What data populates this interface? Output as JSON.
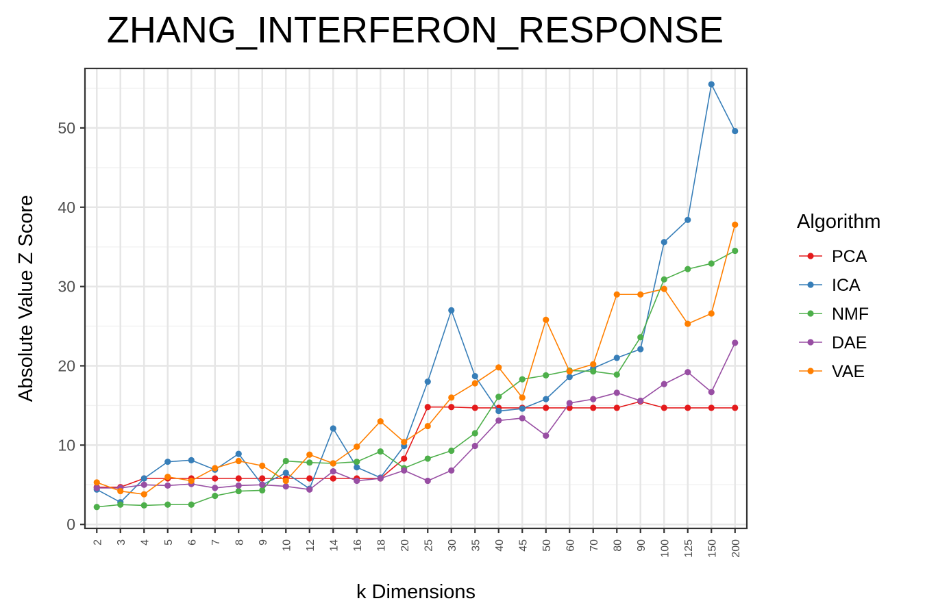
{
  "chart_data": {
    "type": "line",
    "title": "ZHANG_INTERFERON_RESPONSE",
    "xlabel": "k Dimensions",
    "ylabel": "Absolute Value Z Score",
    "categories": [
      "2",
      "3",
      "4",
      "5",
      "6",
      "7",
      "8",
      "9",
      "10",
      "12",
      "14",
      "16",
      "18",
      "20",
      "25",
      "30",
      "35",
      "40",
      "45",
      "50",
      "60",
      "70",
      "80",
      "90",
      "100",
      "125",
      "150",
      "200"
    ],
    "ylim": [
      -0.5,
      57.5
    ],
    "yticks": [
      0,
      10,
      20,
      30,
      40,
      50
    ],
    "yticklabels": [
      "0",
      "10",
      "20",
      "30",
      "40",
      "50"
    ],
    "grid": true,
    "legend": {
      "title": "Algorithm",
      "position": "right"
    },
    "series": [
      {
        "name": "PCA",
        "color": "#e41a1c",
        "values": [
          4.7,
          4.7,
          5.8,
          5.8,
          5.8,
          5.8,
          5.8,
          5.8,
          5.8,
          5.8,
          5.8,
          5.8,
          5.8,
          8.3,
          14.8,
          14.8,
          14.7,
          14.7,
          14.7,
          14.7,
          14.7,
          14.7,
          14.7,
          15.5,
          14.7,
          14.7,
          14.7,
          14.7
        ]
      },
      {
        "name": "ICA",
        "color": "#377eb8",
        "values": [
          4.4,
          2.8,
          5.8,
          7.9,
          8.1,
          6.9,
          8.9,
          5.0,
          6.5,
          4.5,
          12.1,
          7.2,
          5.9,
          9.9,
          18.0,
          27.0,
          18.7,
          14.3,
          14.6,
          15.8,
          18.6,
          19.7,
          21.0,
          22.1,
          35.6,
          38.4,
          55.5,
          49.6
        ]
      },
      {
        "name": "NMF",
        "color": "#4daf4a",
        "values": [
          2.2,
          2.5,
          2.4,
          2.5,
          2.5,
          3.6,
          4.2,
          4.3,
          8.0,
          7.8,
          7.7,
          7.9,
          9.2,
          7.1,
          8.3,
          9.3,
          11.5,
          16.1,
          18.3,
          18.8,
          19.4,
          19.3,
          18.9,
          23.6,
          30.9,
          32.2,
          32.9,
          34.5
        ]
      },
      {
        "name": "DAE",
        "color": "#984ea3",
        "values": [
          4.6,
          4.6,
          5.0,
          4.9,
          5.1,
          4.6,
          4.9,
          5.0,
          4.8,
          4.4,
          6.7,
          5.5,
          5.8,
          6.8,
          5.5,
          6.8,
          9.9,
          13.1,
          13.4,
          11.2,
          15.3,
          15.8,
          16.6,
          15.6,
          17.7,
          19.2,
          16.7,
          22.9
        ]
      },
      {
        "name": "VAE",
        "color": "#ff7f00",
        "values": [
          5.3,
          4.2,
          3.8,
          6.0,
          5.5,
          7.1,
          8.0,
          7.4,
          5.5,
          8.8,
          7.7,
          9.8,
          13.0,
          10.4,
          12.4,
          16.0,
          17.8,
          19.8,
          16.0,
          25.8,
          19.3,
          20.2,
          29.0,
          29.0,
          29.7,
          25.3,
          26.6,
          37.8
        ]
      }
    ]
  }
}
